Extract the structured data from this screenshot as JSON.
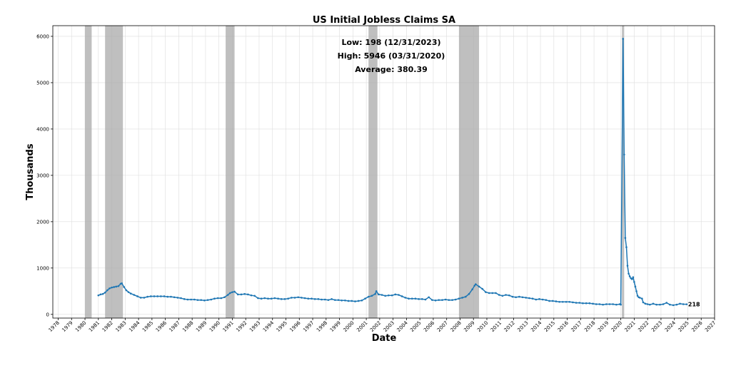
{
  "chart_data": {
    "type": "line",
    "title": "US Initial Jobless Claims SA",
    "xlabel": "Date",
    "ylabel": "Thousands",
    "xlim": [
      1977.6,
      2027.0
    ],
    "ylim": [
      -80,
      6230
    ],
    "grid": true,
    "x_ticks": [
      "1978",
      "1979",
      "1980",
      "1981",
      "1982",
      "1983",
      "1984",
      "1985",
      "1986",
      "1987",
      "1988",
      "1989",
      "1990",
      "1991",
      "1992",
      "1993",
      "1994",
      "1995",
      "1996",
      "1997",
      "1998",
      "1999",
      "2000",
      "2001",
      "2002",
      "2003",
      "2004",
      "2005",
      "2006",
      "2007",
      "2008",
      "2009",
      "2010",
      "2011",
      "2012",
      "2013",
      "2014",
      "2015",
      "2016",
      "2017",
      "2018",
      "2019",
      "2020",
      "2021",
      "2022",
      "2023",
      "2024",
      "2025",
      "2026",
      "2027"
    ],
    "y_ticks": [
      "0",
      "1000",
      "2000",
      "3000",
      "4000",
      "5000",
      "6000"
    ],
    "annotations": {
      "low": "Low: 198 (12/31/2023)",
      "high": "High: 5946 (03/31/2020)",
      "average": "Average: 380.39",
      "last_value": "218"
    },
    "recessions": [
      {
        "start": "1980-01",
        "end": "1980-07"
      },
      {
        "start": "1981-07",
        "end": "1982-11"
      },
      {
        "start": "1990-07",
        "end": "1991-03"
      },
      {
        "start": "2001-03",
        "end": "2001-11"
      },
      {
        "start": "2007-12",
        "end": "2009-06"
      },
      {
        "start": "2020-02",
        "end": "2020-04"
      }
    ],
    "series": [
      {
        "color": "#1f77b4",
        "points": [
          [
            "1981-01",
            410
          ],
          [
            "1981-03",
            430
          ],
          [
            "1981-05",
            440
          ],
          [
            "1981-07",
            470
          ],
          [
            "1981-09",
            520
          ],
          [
            "1981-11",
            560
          ],
          [
            "1982-01",
            580
          ],
          [
            "1982-03",
            590
          ],
          [
            "1982-05",
            600
          ],
          [
            "1982-07",
            610
          ],
          [
            "1982-09",
            660
          ],
          [
            "1982-10",
            670
          ],
          [
            "1982-12",
            590
          ],
          [
            "1983-02",
            520
          ],
          [
            "1983-04",
            480
          ],
          [
            "1983-06",
            450
          ],
          [
            "1983-09",
            420
          ],
          [
            "1983-12",
            390
          ],
          [
            "1984-03",
            360
          ],
          [
            "1984-06",
            360
          ],
          [
            "1984-09",
            380
          ],
          [
            "1984-12",
            390
          ],
          [
            "1985-03",
            390
          ],
          [
            "1985-06",
            390
          ],
          [
            "1985-09",
            390
          ],
          [
            "1985-12",
            390
          ],
          [
            "1986-03",
            380
          ],
          [
            "1986-06",
            380
          ],
          [
            "1986-09",
            370
          ],
          [
            "1986-12",
            360
          ],
          [
            "1987-03",
            350
          ],
          [
            "1987-06",
            330
          ],
          [
            "1987-09",
            320
          ],
          [
            "1987-12",
            320
          ],
          [
            "1988-03",
            320
          ],
          [
            "1988-06",
            310
          ],
          [
            "1988-09",
            310
          ],
          [
            "1988-12",
            300
          ],
          [
            "1989-03",
            310
          ],
          [
            "1989-06",
            320
          ],
          [
            "1989-09",
            340
          ],
          [
            "1989-12",
            350
          ],
          [
            "1990-03",
            350
          ],
          [
            "1990-06",
            370
          ],
          [
            "1990-09",
            420
          ],
          [
            "1990-11",
            460
          ],
          [
            "1991-01",
            480
          ],
          [
            "1991-03",
            490
          ],
          [
            "1991-06",
            430
          ],
          [
            "1991-09",
            430
          ],
          [
            "1991-12",
            440
          ],
          [
            "1992-03",
            430
          ],
          [
            "1992-06",
            410
          ],
          [
            "1992-09",
            400
          ],
          [
            "1992-12",
            350
          ],
          [
            "1993-03",
            340
          ],
          [
            "1993-06",
            350
          ],
          [
            "1993-09",
            340
          ],
          [
            "1993-12",
            340
          ],
          [
            "1994-03",
            350
          ],
          [
            "1994-06",
            340
          ],
          [
            "1994-09",
            330
          ],
          [
            "1994-12",
            330
          ],
          [
            "1995-03",
            340
          ],
          [
            "1995-06",
            360
          ],
          [
            "1995-09",
            360
          ],
          [
            "1995-12",
            370
          ],
          [
            "1996-03",
            360
          ],
          [
            "1996-06",
            350
          ],
          [
            "1996-09",
            340
          ],
          [
            "1996-12",
            340
          ],
          [
            "1997-03",
            330
          ],
          [
            "1997-06",
            330
          ],
          [
            "1997-09",
            320
          ],
          [
            "1997-12",
            320
          ],
          [
            "1998-03",
            310
          ],
          [
            "1998-06",
            330
          ],
          [
            "1998-09",
            310
          ],
          [
            "1998-12",
            310
          ],
          [
            "1999-03",
            300
          ],
          [
            "1999-06",
            300
          ],
          [
            "1999-09",
            290
          ],
          [
            "1999-12",
            290
          ],
          [
            "2000-03",
            280
          ],
          [
            "2000-06",
            290
          ],
          [
            "2000-09",
            300
          ],
          [
            "2000-12",
            340
          ],
          [
            "2001-03",
            380
          ],
          [
            "2001-06",
            400
          ],
          [
            "2001-09",
            440
          ],
          [
            "2001-10",
            500
          ],
          [
            "2001-12",
            430
          ],
          [
            "2002-03",
            420
          ],
          [
            "2002-06",
            400
          ],
          [
            "2002-09",
            410
          ],
          [
            "2002-12",
            410
          ],
          [
            "2003-03",
            430
          ],
          [
            "2003-06",
            420
          ],
          [
            "2003-09",
            390
          ],
          [
            "2003-12",
            360
          ],
          [
            "2004-03",
            340
          ],
          [
            "2004-06",
            340
          ],
          [
            "2004-09",
            340
          ],
          [
            "2004-12",
            330
          ],
          [
            "2005-03",
            330
          ],
          [
            "2005-06",
            320
          ],
          [
            "2005-09",
            370
          ],
          [
            "2005-12",
            310
          ],
          [
            "2006-03",
            300
          ],
          [
            "2006-06",
            310
          ],
          [
            "2006-09",
            310
          ],
          [
            "2006-12",
            320
          ],
          [
            "2007-03",
            310
          ],
          [
            "2007-06",
            310
          ],
          [
            "2007-09",
            320
          ],
          [
            "2007-12",
            340
          ],
          [
            "2008-03",
            360
          ],
          [
            "2008-06",
            380
          ],
          [
            "2008-09",
            440
          ],
          [
            "2008-12",
            540
          ],
          [
            "2009-02",
            620
          ],
          [
            "2009-03",
            650
          ],
          [
            "2009-06",
            600
          ],
          [
            "2009-09",
            550
          ],
          [
            "2009-12",
            480
          ],
          [
            "2010-03",
            460
          ],
          [
            "2010-06",
            460
          ],
          [
            "2010-09",
            460
          ],
          [
            "2010-12",
            420
          ],
          [
            "2011-03",
            400
          ],
          [
            "2011-06",
            420
          ],
          [
            "2011-09",
            410
          ],
          [
            "2011-12",
            380
          ],
          [
            "2012-03",
            370
          ],
          [
            "2012-06",
            380
          ],
          [
            "2012-09",
            370
          ],
          [
            "2012-12",
            360
          ],
          [
            "2013-03",
            350
          ],
          [
            "2013-06",
            340
          ],
          [
            "2013-09",
            320
          ],
          [
            "2013-12",
            330
          ],
          [
            "2014-03",
            320
          ],
          [
            "2014-06",
            310
          ],
          [
            "2014-09",
            290
          ],
          [
            "2014-12",
            290
          ],
          [
            "2015-03",
            280
          ],
          [
            "2015-06",
            270
          ],
          [
            "2015-09",
            270
          ],
          [
            "2015-12",
            270
          ],
          [
            "2016-03",
            270
          ],
          [
            "2016-06",
            260
          ],
          [
            "2016-09",
            250
          ],
          [
            "2016-12",
            250
          ],
          [
            "2017-03",
            240
          ],
          [
            "2017-06",
            240
          ],
          [
            "2017-09",
            240
          ],
          [
            "2017-12",
            230
          ],
          [
            "2018-03",
            220
          ],
          [
            "2018-06",
            220
          ],
          [
            "2018-09",
            210
          ],
          [
            "2018-12",
            220
          ],
          [
            "2019-03",
            220
          ],
          [
            "2019-06",
            220
          ],
          [
            "2019-09",
            210
          ],
          [
            "2019-12",
            220
          ],
          [
            "2020-01",
            210
          ],
          [
            "2020-03",
            5946
          ],
          [
            "2020-04",
            3450
          ],
          [
            "2020-05",
            1650
          ],
          [
            "2020-06",
            1450
          ],
          [
            "2020-07",
            1050
          ],
          [
            "2020-08",
            880
          ],
          [
            "2020-09",
            820
          ],
          [
            "2020-10",
            780
          ],
          [
            "2020-11",
            760
          ],
          [
            "2020-12",
            800
          ],
          [
            "2021-01",
            700
          ],
          [
            "2021-02",
            600
          ],
          [
            "2021-03",
            500
          ],
          [
            "2021-04",
            400
          ],
          [
            "2021-05",
            370
          ],
          [
            "2021-06",
            360
          ],
          [
            "2021-08",
            340
          ],
          [
            "2021-09",
            260
          ],
          [
            "2021-11",
            230
          ],
          [
            "2022-01",
            220
          ],
          [
            "2022-03",
            210
          ],
          [
            "2022-06",
            230
          ],
          [
            "2022-09",
            210
          ],
          [
            "2022-12",
            210
          ],
          [
            "2023-03",
            220
          ],
          [
            "2023-06",
            250
          ],
          [
            "2023-09",
            210
          ],
          [
            "2023-12",
            198
          ],
          [
            "2024-03",
            210
          ],
          [
            "2024-06",
            230
          ],
          [
            "2024-09",
            220
          ],
          [
            "2024-12",
            218
          ]
        ]
      }
    ]
  }
}
